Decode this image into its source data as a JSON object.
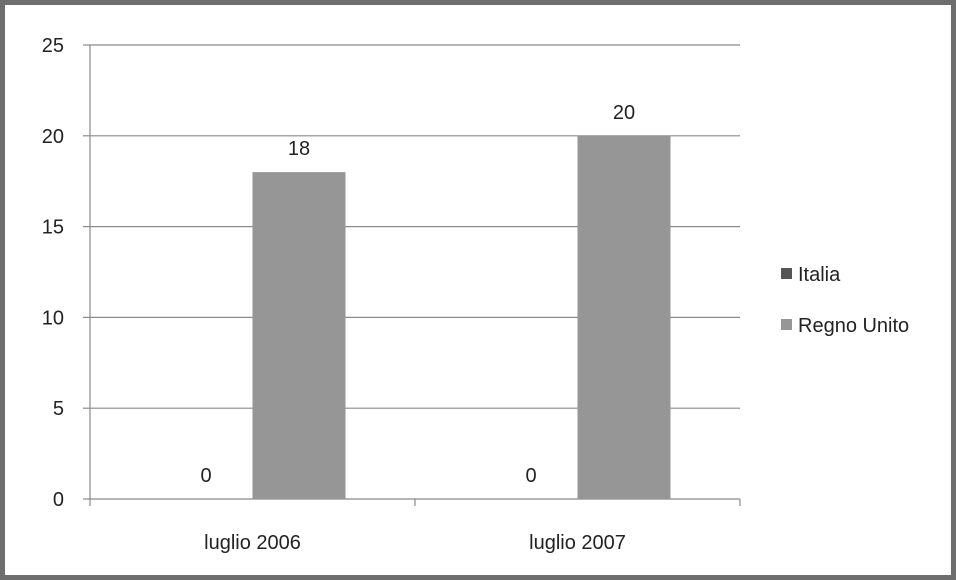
{
  "chart_data": {
    "type": "bar",
    "categories": [
      "luglio 2006",
      "luglio 2007"
    ],
    "series": [
      {
        "name": "Italia",
        "values": [
          0,
          0
        ],
        "color": "#555555"
      },
      {
        "name": "Regno Unito",
        "values": [
          18,
          20
        ],
        "color": "#969696"
      }
    ],
    "ylim": [
      0,
      25
    ],
    "yticks": [
      0,
      5,
      10,
      15,
      20,
      25
    ],
    "grid": true,
    "legend_position": "right",
    "data_labels": true
  }
}
